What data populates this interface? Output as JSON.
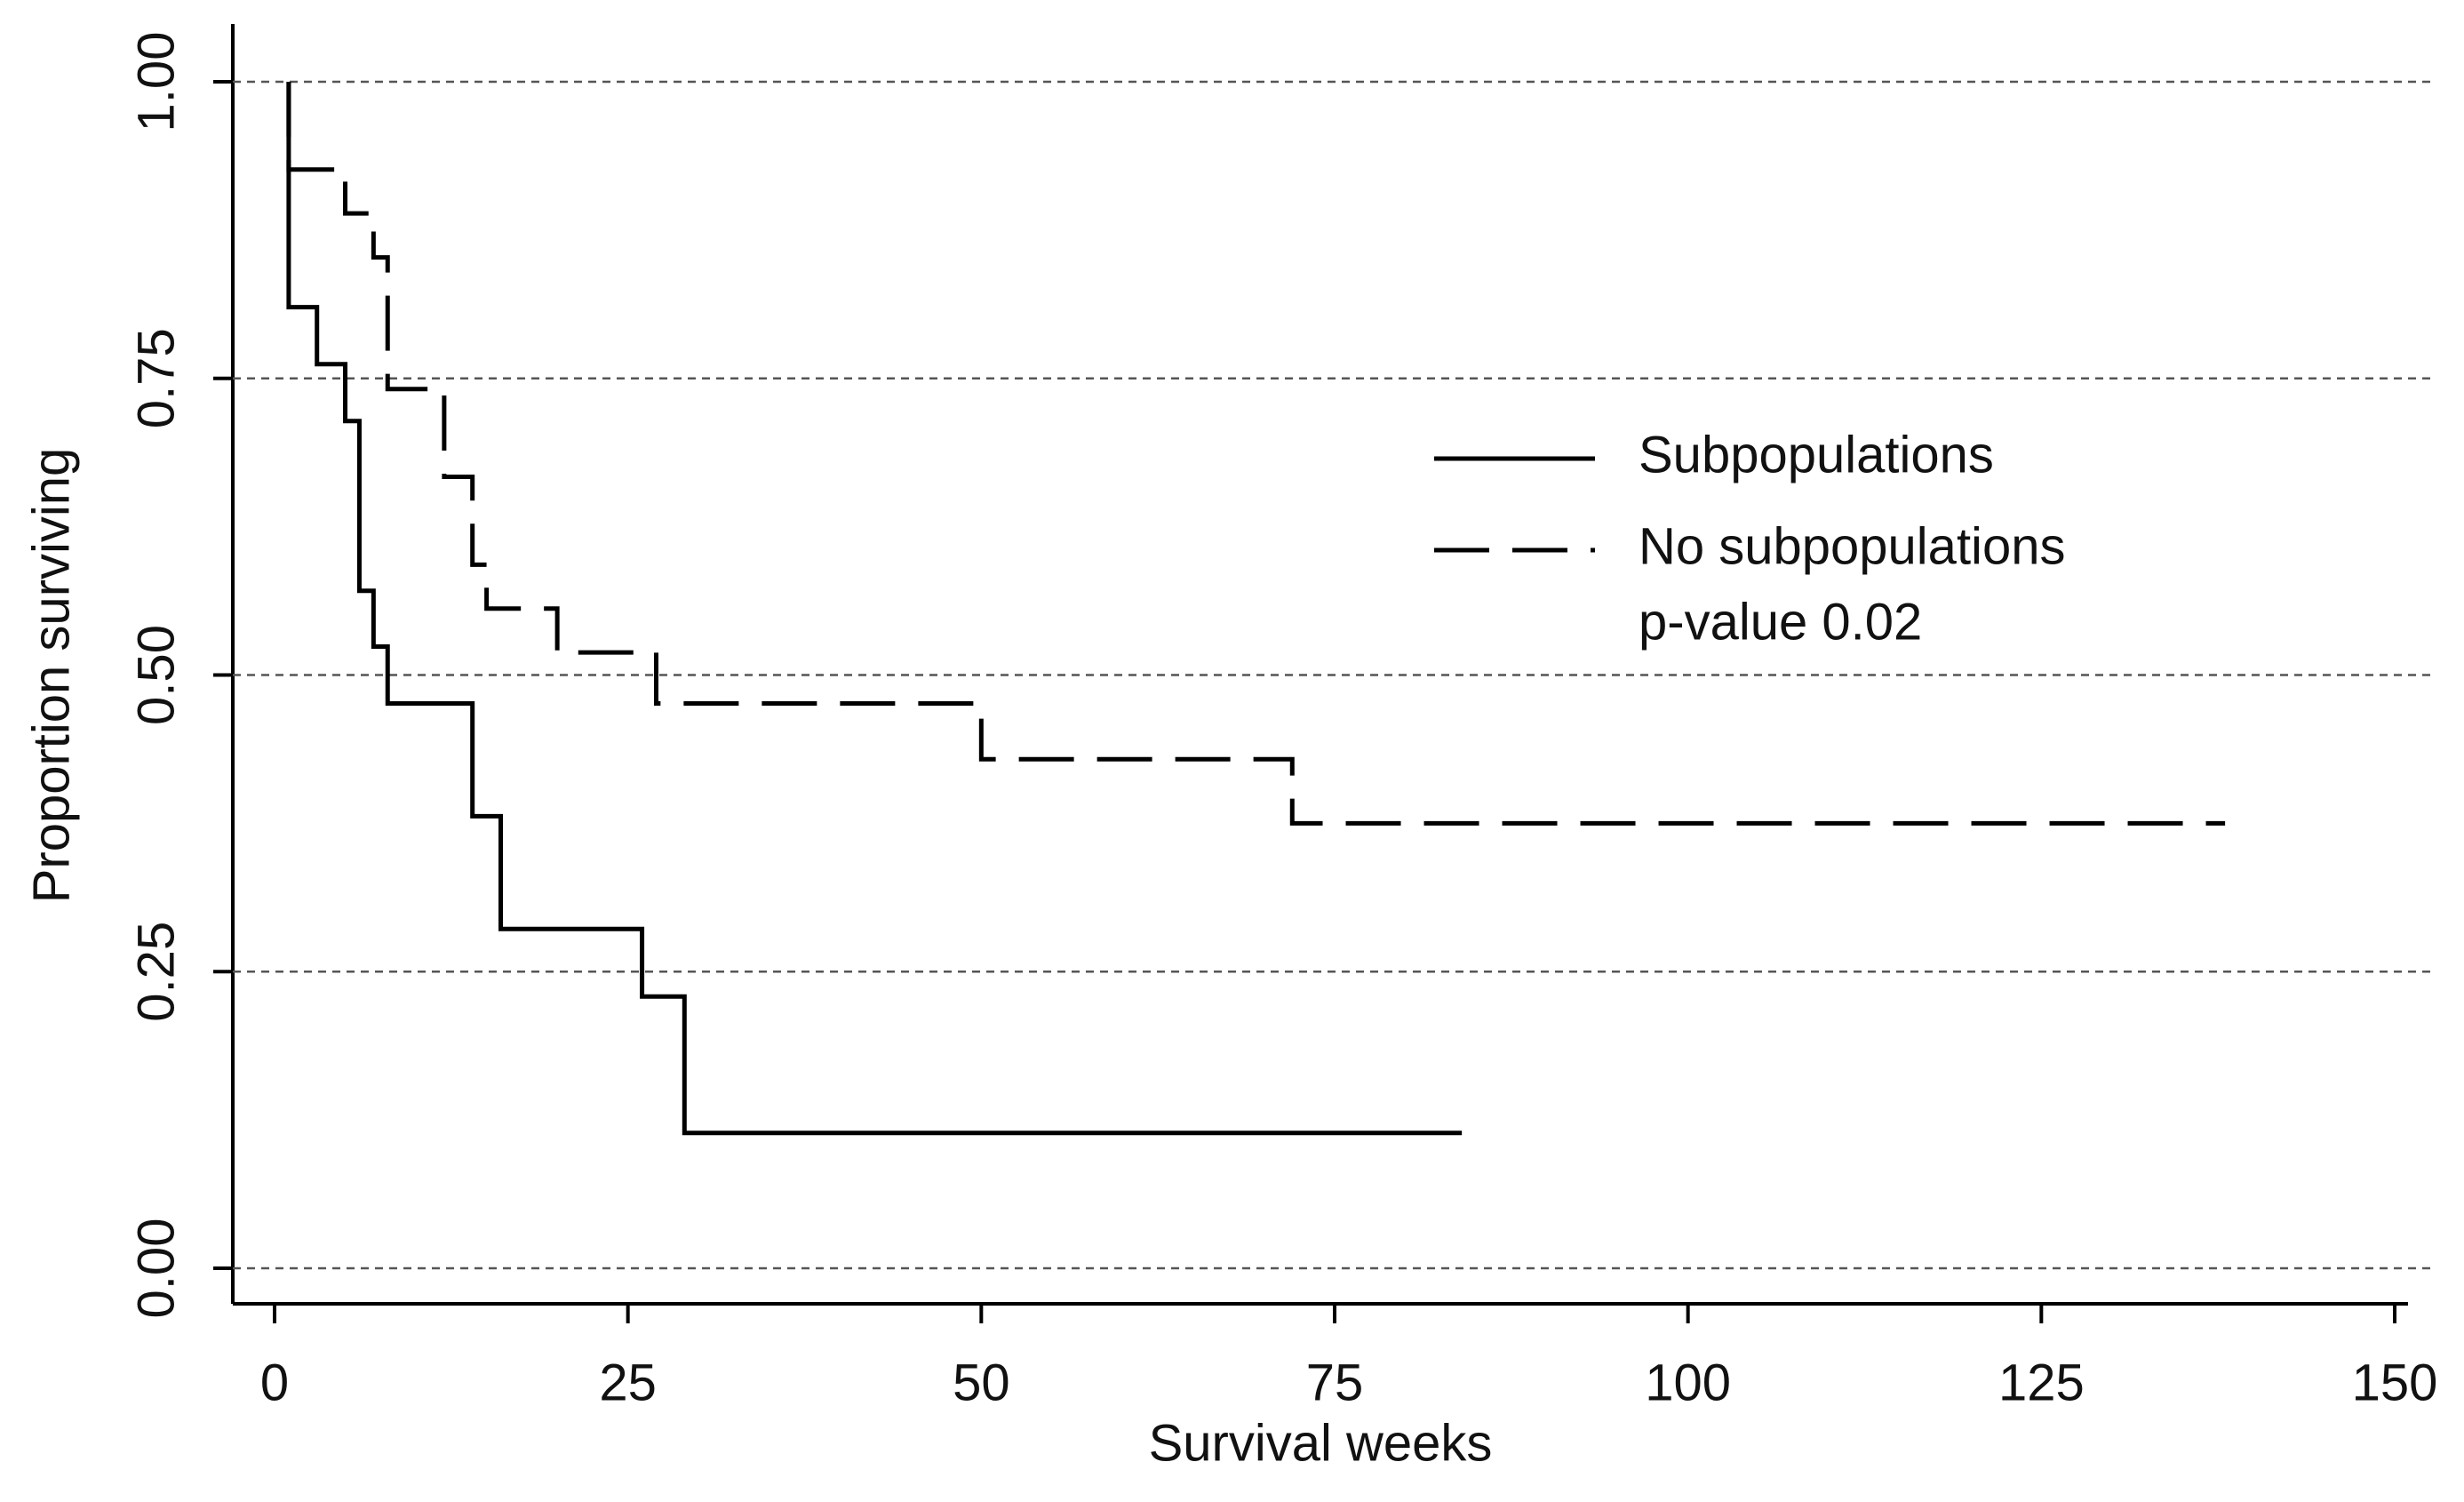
{
  "chart_data": {
    "type": "step",
    "x_label": "Survival weeks",
    "y_label": "Proportion surviving",
    "annotation": "p-value 0.02",
    "series": [
      {
        "name": "Subpopulations",
        "color": "#000000",
        "linestyle": "solid",
        "x": [
          1,
          1,
          3,
          5,
          6,
          7,
          8,
          14,
          16,
          26,
          29,
          84
        ],
        "values": [
          1,
          0.81,
          0.762,
          0.714,
          0.571,
          0.524,
          0.476,
          0.381,
          0.286,
          0.229,
          0.114,
          0.114
        ]
      },
      {
        "name": "No subpopulations",
        "color": "#000000",
        "linestyle": "dashed",
        "x": [
          1,
          1,
          5,
          7,
          8,
          12,
          14,
          15,
          20,
          27,
          50,
          72,
          138
        ],
        "values": [
          1,
          0.926,
          0.889,
          0.852,
          0.741,
          0.667,
          0.593,
          0.556,
          0.519,
          0.476,
          0.429,
          0.375,
          0.375
        ]
      }
    ],
    "xlim": [
      0,
      150
    ],
    "xticks": [
      0,
      25,
      50,
      75,
      100,
      125,
      150
    ],
    "ylim": [
      0,
      1
    ],
    "yticks": [
      {
        "value": 0,
        "label": "0.00"
      },
      {
        "value": 0.25,
        "label": "0.25"
      },
      {
        "value": 0.5,
        "label": "0.50"
      },
      {
        "value": 0.75,
        "label": "0.75"
      },
      {
        "value": 1,
        "label": "1.00"
      }
    ],
    "grid": true
  }
}
